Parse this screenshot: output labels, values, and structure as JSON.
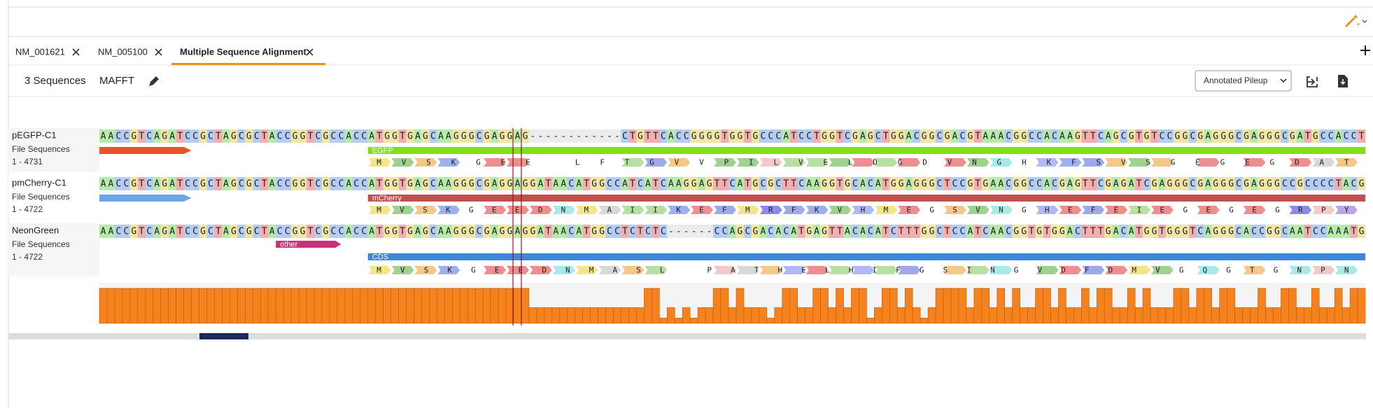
{
  "tabs": [
    "NM_001621",
    "NM_005100",
    "Multiple Sequence Alignment"
  ],
  "toolbar": {
    "count": "3 Sequences",
    "method": "MAFFT",
    "view": "Annotated Pileup"
  },
  "rows": [
    {
      "name": "pEGFP-C1",
      "source": "File Sequences",
      "range": "1 - 4731",
      "sequence": "AACCGTCAGATCCGCTAGCGCTACCGGTCGCCACCATGGTGAGCAAGGGCGAGGAG------------CTGTTCACCGGGGTGGTGCCCATCCTGGTCGAGCTGGACGGCGACGTAAACGGCCACAAGTTCAGCGTGTCCGGCGAGGGCGAGGGCGATGCCACCT",
      "features": [
        "EGFP"
      ],
      "translation": "MVSKGEE    LFTGVVPILVELDGDVNGHKFSVSGEGEGDAT"
    },
    {
      "name": "pmCherry-C1",
      "source": "File Sequences",
      "range": "1 - 4722",
      "sequence": "AACCGTCAGATCCGCTAGCGCTACCGGTCGCCACCATGGTGAGCAAGGGCGAGGAGGATAACATGGCCATCATCAAGGAGTTCATGCGCTTCAAGGTGCACATGGAGGGCTCCGTGAACGGCCACGAGTTCGAGATCGAGGGCGAGGGCGAGGGCCGCCCCTACG",
      "features": [
        "mCherry"
      ],
      "translation": "MVSKGEEDNMAIIKEFMRFKVHMEGSVNGHEFEIEGEGEGRPY"
    },
    {
      "name": "NeonGreen",
      "source": "File Sequences",
      "range": "1 - 4722",
      "sequence": "AACCGTCAGATCCGCTAGCGCTACCGGTCGCCACCATGGTGAGCAAGGGCGAGGAGGATAACATGGCCTCTCTC------CCAGCGACACATGAGTTACACATCTTTGGCTCCATCAACGGTGTGGACTTTGACATGGTGGGTCAGGGCACCGGCAATCCAAATG",
      "features": [
        "other",
        "CDS"
      ],
      "translation": "MVSKGEEDNMASL  PATHELHIFGSINGVDFDMVGQGTGNPN"
    }
  ],
  "coverage": {
    "color": "#f5821f",
    "ylim": [
      0,
      100
    ],
    "values": [
      100,
      100,
      100,
      100,
      100,
      100,
      100,
      100,
      100,
      100,
      100,
      100,
      100,
      100,
      100,
      100,
      100,
      100,
      100,
      100,
      100,
      100,
      100,
      100,
      100,
      100,
      100,
      100,
      100,
      100,
      100,
      100,
      100,
      100,
      100,
      100,
      100,
      100,
      100,
      100,
      100,
      100,
      100,
      100,
      100,
      100,
      100,
      100,
      100,
      100,
      100,
      100,
      100,
      100,
      100,
      100,
      45,
      45,
      45,
      45,
      45,
      45,
      45,
      45,
      45,
      45,
      45,
      45,
      45,
      45,
      45,
      100,
      100,
      15,
      45,
      15,
      45,
      15,
      45,
      45,
      100,
      100,
      45,
      100,
      45,
      45,
      45,
      15,
      45,
      100,
      100,
      45,
      45,
      100,
      100,
      45,
      100,
      45,
      100,
      100,
      15,
      45,
      100,
      100,
      45,
      100,
      45,
      15,
      45,
      100,
      100,
      100,
      100,
      45,
      100,
      100,
      45,
      100,
      45,
      100,
      45,
      45,
      100,
      100,
      45,
      100,
      45,
      45,
      100,
      45,
      100,
      100,
      45,
      45,
      100,
      45,
      100,
      45,
      45,
      45,
      100,
      100,
      45,
      100,
      100,
      45,
      100,
      100,
      45,
      45,
      45,
      100,
      45,
      45,
      100,
      100,
      45,
      45,
      100,
      45,
      45,
      100,
      45,
      100,
      100
    ]
  }
}
